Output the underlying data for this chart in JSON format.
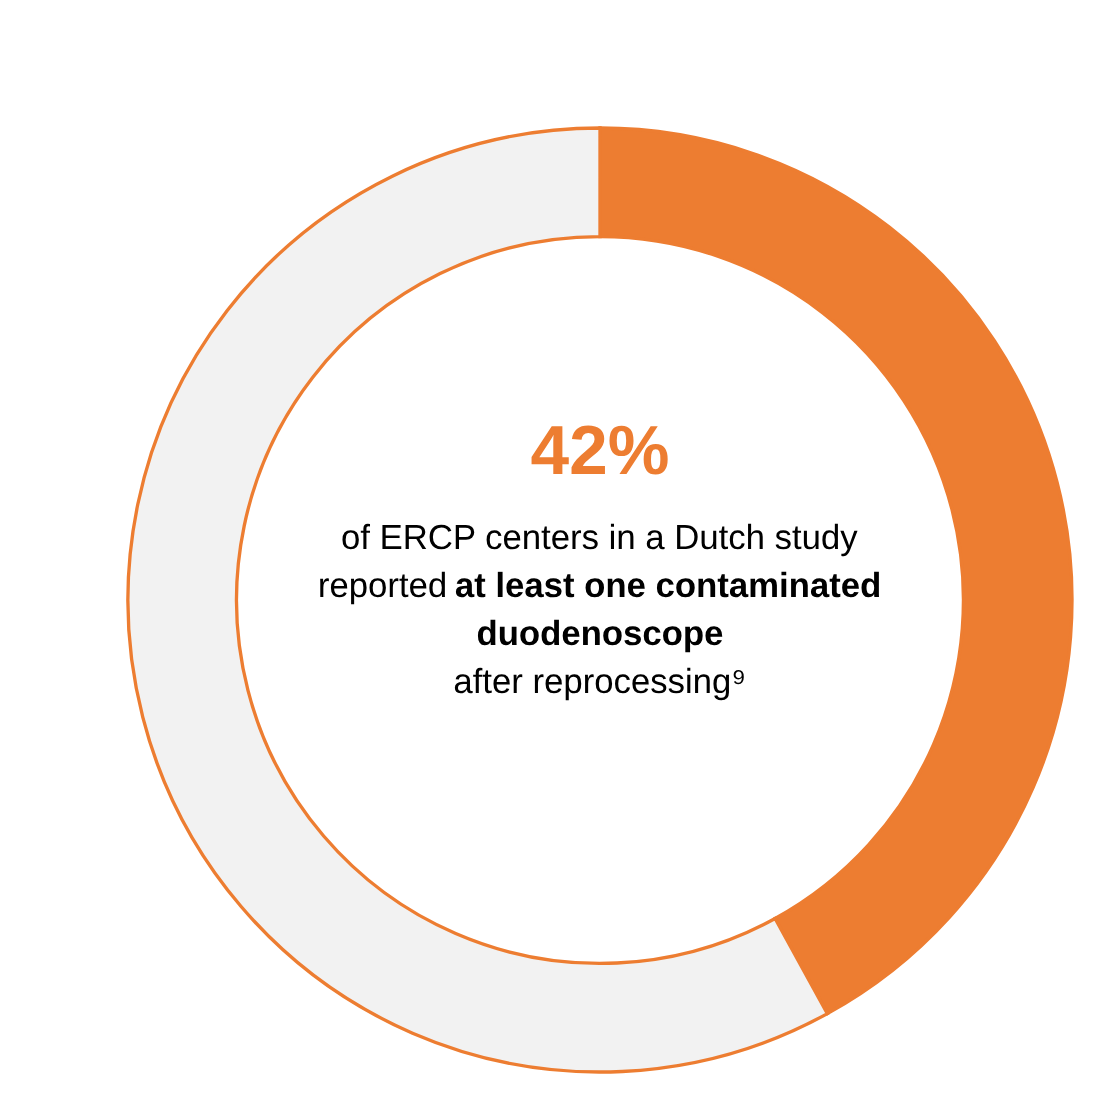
{
  "chart_data": {
    "type": "donut",
    "categories": [
      null,
      null
    ],
    "values": [
      42,
      58
    ],
    "colors": [
      "#ed7d31",
      "#f2f2f2"
    ],
    "value_labels": [
      "42%",
      null
    ],
    "annotations": [
      "of ERCP centers in a Dutch study",
      "reported",
      "at least one contaminated",
      "duodenoscope",
      "after reprocessing⁹"
    ]
  }
}
